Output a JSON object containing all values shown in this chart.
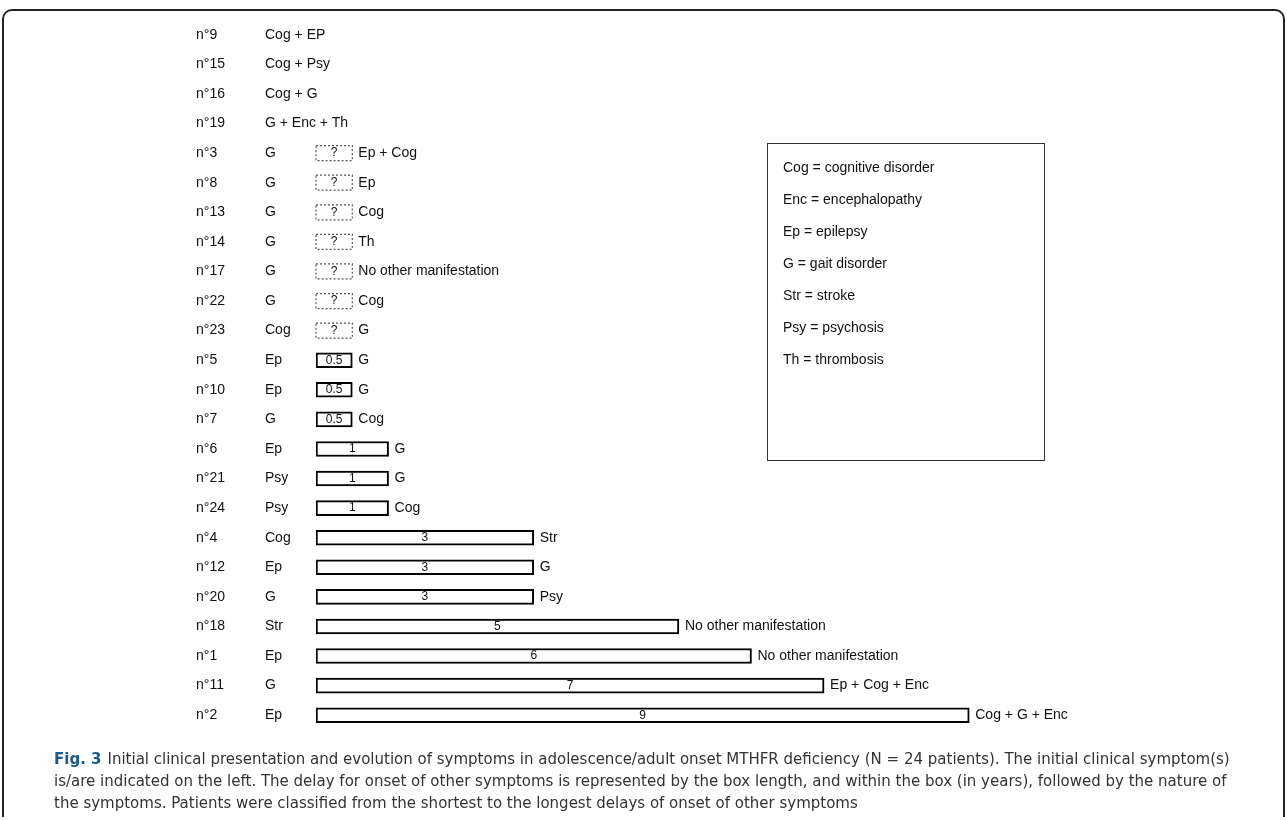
{
  "chart_data": {
    "type": "bar",
    "orientation": "horizontal",
    "title": "Fig. 3",
    "categories": [
      "n°9",
      "n°15",
      "n°16",
      "n°19",
      "n°3",
      "n°8",
      "n°13",
      "n°14",
      "n°17",
      "n°22",
      "n°23",
      "n°5",
      "n°10",
      "n°7",
      "n°6",
      "n°21",
      "n°24",
      "n°4",
      "n°12",
      "n°20",
      "n°18",
      "n°1",
      "n°11",
      "n°2"
    ],
    "series": [
      {
        "color": "#ffffff",
        "values": [
          null,
          null,
          null,
          null,
          null,
          null,
          null,
          null,
          null,
          null,
          null,
          0.5,
          0.5,
          0.5,
          1,
          1,
          1,
          3,
          3,
          3,
          5,
          6,
          7,
          9
        ],
        "value_labels": [
          null,
          null,
          null,
          null,
          null,
          null,
          null,
          null,
          null,
          null,
          null,
          "0.5",
          "0.5",
          "0.5",
          "1",
          "1",
          "1",
          "3",
          "3",
          "3",
          "5",
          "6",
          "7",
          "9"
        ]
      },
      {
        "color": "#ffffff",
        "line_style": "dotted",
        "values": [
          null,
          null,
          null,
          null,
          0.5,
          0.5,
          0.5,
          0.5,
          0.5,
          0.5,
          0.5,
          null,
          null,
          null,
          null,
          null,
          null,
          null,
          null,
          null,
          null,
          null,
          null,
          null
        ],
        "value_labels": [
          null,
          null,
          null,
          null,
          "?",
          "?",
          "?",
          "?",
          "?",
          "?",
          "?",
          null,
          null,
          null,
          null,
          null,
          null,
          null,
          null,
          null,
          null,
          null,
          null,
          null
        ]
      }
    ],
    "annotations": [
      "Cog + EP",
      "Cog + Psy",
      "Cog + G",
      "G + Enc + Th",
      "G",
      "G",
      "G",
      "G",
      "G",
      "G",
      "Cog",
      "Ep",
      "Ep",
      "G",
      "Ep",
      "Psy",
      "Psy",
      "Cog",
      "Ep",
      "G",
      "Str",
      "Ep",
      "G",
      "Ep",
      {
        "text": "Ep + Cog",
        "x": 0.5,
        "y": "n°3"
      },
      {
        "text": "Ep",
        "x": 0.5,
        "y": "n°8"
      },
      {
        "text": "Cog",
        "x": 0.5,
        "y": "n°13"
      },
      {
        "text": "Th",
        "x": 0.5,
        "y": "n°14"
      },
      {
        "text": "No other manifestation",
        "x": 0.5,
        "y": "n°17"
      },
      {
        "text": "Cog",
        "x": 0.5,
        "y": "n°22"
      },
      {
        "text": "G",
        "x": 0.5,
        "y": "n°23"
      },
      {
        "text": "G",
        "x": 0.5,
        "y": "n°5"
      },
      {
        "text": "G",
        "x": 0.5,
        "y": "n°10"
      },
      {
        "text": "Cog",
        "x": 0.5,
        "y": "n°7"
      },
      {
        "text": "G",
        "x": 1,
        "y": "n°6"
      },
      {
        "text": "G",
        "x": 1,
        "y": "n°21"
      },
      {
        "text": "Cog",
        "x": 1,
        "y": "n°24"
      },
      {
        "text": "Str",
        "x": 3,
        "y": "n°4"
      },
      {
        "text": "G",
        "x": 3,
        "y": "n°12"
      },
      {
        "text": "Psy",
        "x": 3,
        "y": "n°20"
      },
      {
        "text": "No other manifestation",
        "x": 5,
        "y": "n°18"
      },
      {
        "text": "No other manifestation",
        "x": 6,
        "y": "n°1"
      },
      {
        "text": "Ep + Cog + Enc",
        "x": 7,
        "y": "n°11"
      },
      {
        "text": "Cog + G + Enc",
        "x": 9,
        "y": "n°2"
      },
      "Cog = cognitive disorder",
      "Enc = encephalopathy",
      "Ep = epilepsy",
      "G = gait disorder",
      "Str = stroke",
      "Psy = psychosis",
      "Th = thrombosis",
      "Initial clinical presentation and evolution of symptoms in adolescence/adult onset MTHFR deficiency (N = 24 patients). The initial clinical symptom(s) is/are indicated on the left. The delay for onset of other symptoms is represented by the box length, and within the box (in years), followed by the nature of the symptoms. Patients were classified from the shortest to the longest delays of onset of other symptoms"
    ],
    "legend": false
  }
}
